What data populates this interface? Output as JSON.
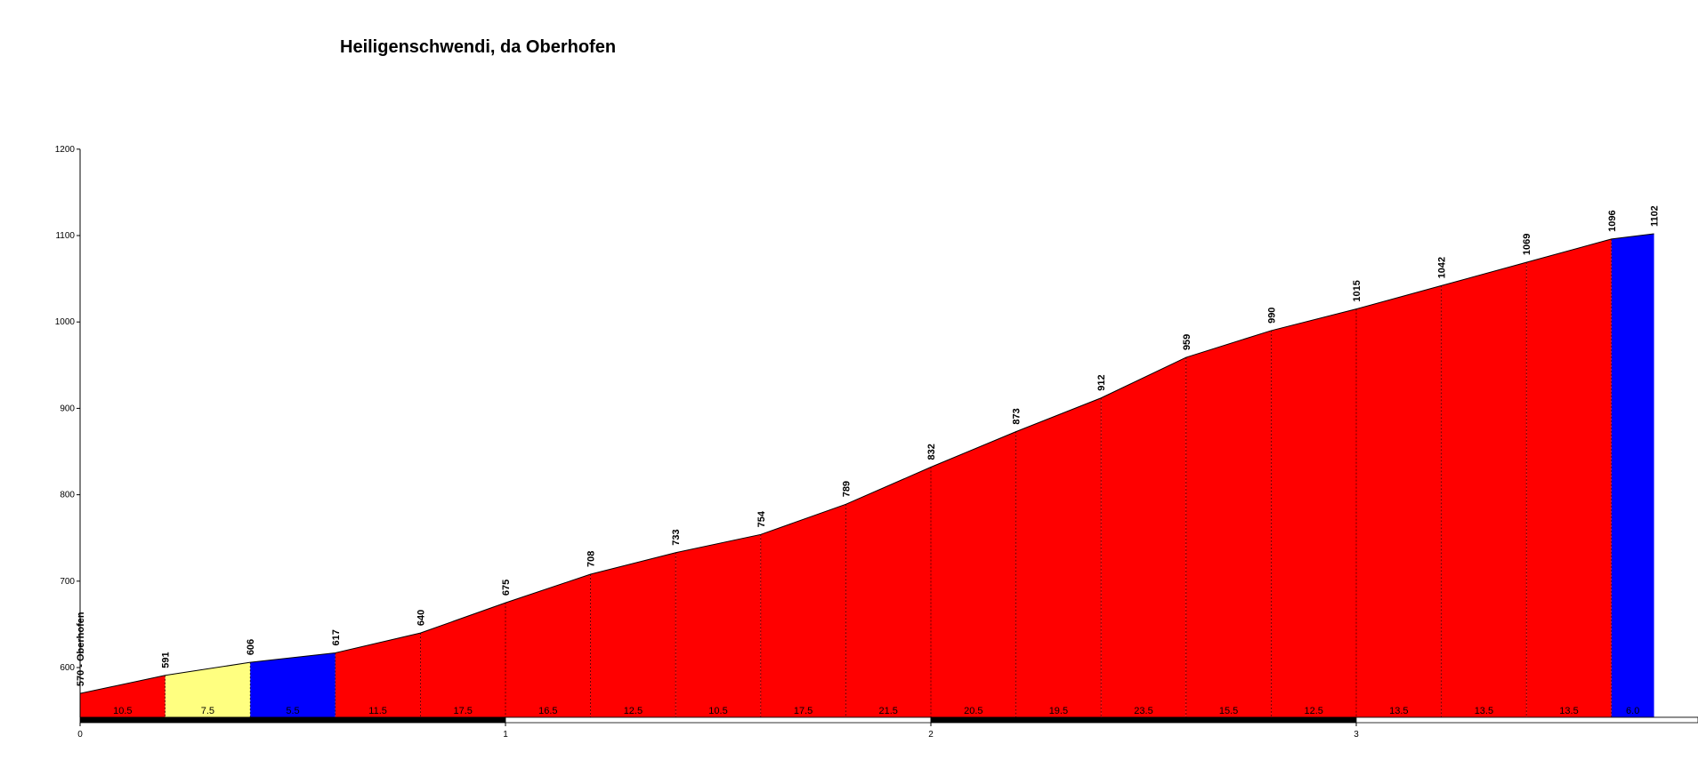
{
  "chart_data": {
    "type": "area",
    "title": "Heiligenschwendi, da Oberhofen",
    "xlabel": "",
    "ylabel": "",
    "xlim": [
      0,
      3.9
    ],
    "ylim": [
      540,
      1200
    ],
    "x_ticks": [
      "0",
      "1",
      "2",
      "3"
    ],
    "y_ticks": [
      "600",
      "700",
      "800",
      "900",
      "1000",
      "1100",
      "1200"
    ],
    "start_label": "570 - Oberhofen",
    "points": [
      {
        "km": 0.0,
        "elevation": 570,
        "label": "570 - Oberhofen"
      },
      {
        "km": 0.2,
        "elevation": 591,
        "label": "591"
      },
      {
        "km": 0.4,
        "elevation": 606,
        "label": "606"
      },
      {
        "km": 0.6,
        "elevation": 617,
        "label": "617"
      },
      {
        "km": 0.8,
        "elevation": 640,
        "label": "640"
      },
      {
        "km": 1.0,
        "elevation": 675,
        "label": "675"
      },
      {
        "km": 1.2,
        "elevation": 708,
        "label": "708"
      },
      {
        "km": 1.4,
        "elevation": 733,
        "label": "733"
      },
      {
        "km": 1.6,
        "elevation": 754,
        "label": "754"
      },
      {
        "km": 1.8,
        "elevation": 789,
        "label": "789"
      },
      {
        "km": 2.0,
        "elevation": 832,
        "label": "832"
      },
      {
        "km": 2.2,
        "elevation": 873,
        "label": "873"
      },
      {
        "km": 2.4,
        "elevation": 912,
        "label": "912"
      },
      {
        "km": 2.6,
        "elevation": 959,
        "label": "959"
      },
      {
        "km": 2.8,
        "elevation": 990,
        "label": "990"
      },
      {
        "km": 3.0,
        "elevation": 1015,
        "label": "1015"
      },
      {
        "km": 3.2,
        "elevation": 1042,
        "label": "1042"
      },
      {
        "km": 3.4,
        "elevation": 1069,
        "label": "1069"
      },
      {
        "km": 3.6,
        "elevation": 1096,
        "label": "1096"
      },
      {
        "km": 3.7,
        "elevation": 1102,
        "label": "1102"
      }
    ],
    "segments": [
      {
        "grade": "10.5",
        "color": "#ff0000"
      },
      {
        "grade": "7.5",
        "color": "#ffff80"
      },
      {
        "grade": "5.5",
        "color": "#0000ff"
      },
      {
        "grade": "11.5",
        "color": "#ff0000"
      },
      {
        "grade": "17.5",
        "color": "#ff0000"
      },
      {
        "grade": "16.5",
        "color": "#ff0000"
      },
      {
        "grade": "12.5",
        "color": "#ff0000"
      },
      {
        "grade": "10.5",
        "color": "#ff0000"
      },
      {
        "grade": "17.5",
        "color": "#ff0000"
      },
      {
        "grade": "21.5",
        "color": "#ff0000"
      },
      {
        "grade": "20.5",
        "color": "#ff0000"
      },
      {
        "grade": "19.5",
        "color": "#ff0000"
      },
      {
        "grade": "23.5",
        "color": "#ff0000"
      },
      {
        "grade": "15.5",
        "color": "#ff0000"
      },
      {
        "grade": "12.5",
        "color": "#ff0000"
      },
      {
        "grade": "13.5",
        "color": "#ff0000"
      },
      {
        "grade": "13.5",
        "color": "#ff0000"
      },
      {
        "grade": "13.5",
        "color": "#ff0000"
      },
      {
        "grade": "6.0",
        "color": "#0000ff"
      }
    ],
    "grid": false,
    "legend": "none"
  }
}
